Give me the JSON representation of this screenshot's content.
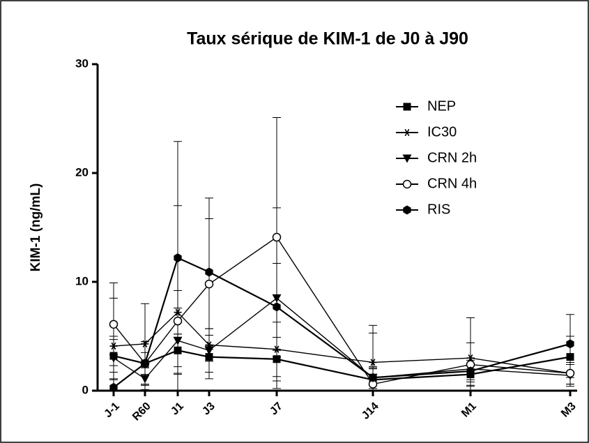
{
  "chart_data": {
    "type": "line",
    "title": "Taux sérique de KIM-1 de J0 à J90",
    "y_label": "KIM-1 (ng/mL)",
    "categories": [
      "J-1",
      "R60",
      "J1",
      "J3",
      "J7",
      "J14",
      "M1",
      "M3"
    ],
    "ylim": [
      0,
      30
    ],
    "yticks": [
      0,
      10,
      20,
      30
    ],
    "legend": "upper right",
    "series": [
      {
        "name": "NEP",
        "color": "#000000",
        "marker": "square",
        "values": [
          3.2,
          2.5,
          3.7,
          3.1,
          2.9,
          1.0,
          1.5,
          3.1
        ],
        "errors": [
          1.5,
          1.0,
          1.5,
          2.0,
          2.0,
          1.0,
          1.0,
          1.9
        ]
      },
      {
        "name": "IC30",
        "color": "#000000",
        "marker": "star",
        "values": [
          4.1,
          4.3,
          7.2,
          4.2,
          3.8,
          2.6,
          3.0,
          1.6
        ],
        "errors": [
          4.4,
          3.7,
          2.0,
          1.5,
          2.5,
          3.4,
          3.7,
          1.0
        ]
      },
      {
        "name": "CRN 2h",
        "color": "#000000",
        "marker": "triangle-down",
        "values": [
          3.0,
          1.1,
          4.6,
          3.7,
          8.5,
          1.2,
          2.0,
          1.4
        ],
        "errors": [
          2.0,
          1.0,
          3.0,
          2.0,
          8.3,
          4.1,
          1.0,
          1.0
        ]
      },
      {
        "name": "CRN 4h",
        "color": "#000000",
        "marker": "circle-open",
        "values": [
          6.1,
          2.5,
          6.4,
          9.8,
          14.1,
          0.6,
          2.4,
          1.6
        ],
        "errors": [
          3.8,
          2.0,
          10.6,
          6.0,
          11.0,
          1.5,
          2.0,
          1.0
        ]
      },
      {
        "name": "RIS",
        "color": "#000000",
        "marker": "hexagon",
        "values": [
          0.3,
          2.5,
          12.2,
          10.9,
          7.7,
          1.2,
          1.8,
          4.3
        ],
        "errors": [
          0.8,
          2.0,
          10.7,
          6.8,
          4.0,
          1.0,
          1.0,
          2.7
        ]
      }
    ]
  }
}
